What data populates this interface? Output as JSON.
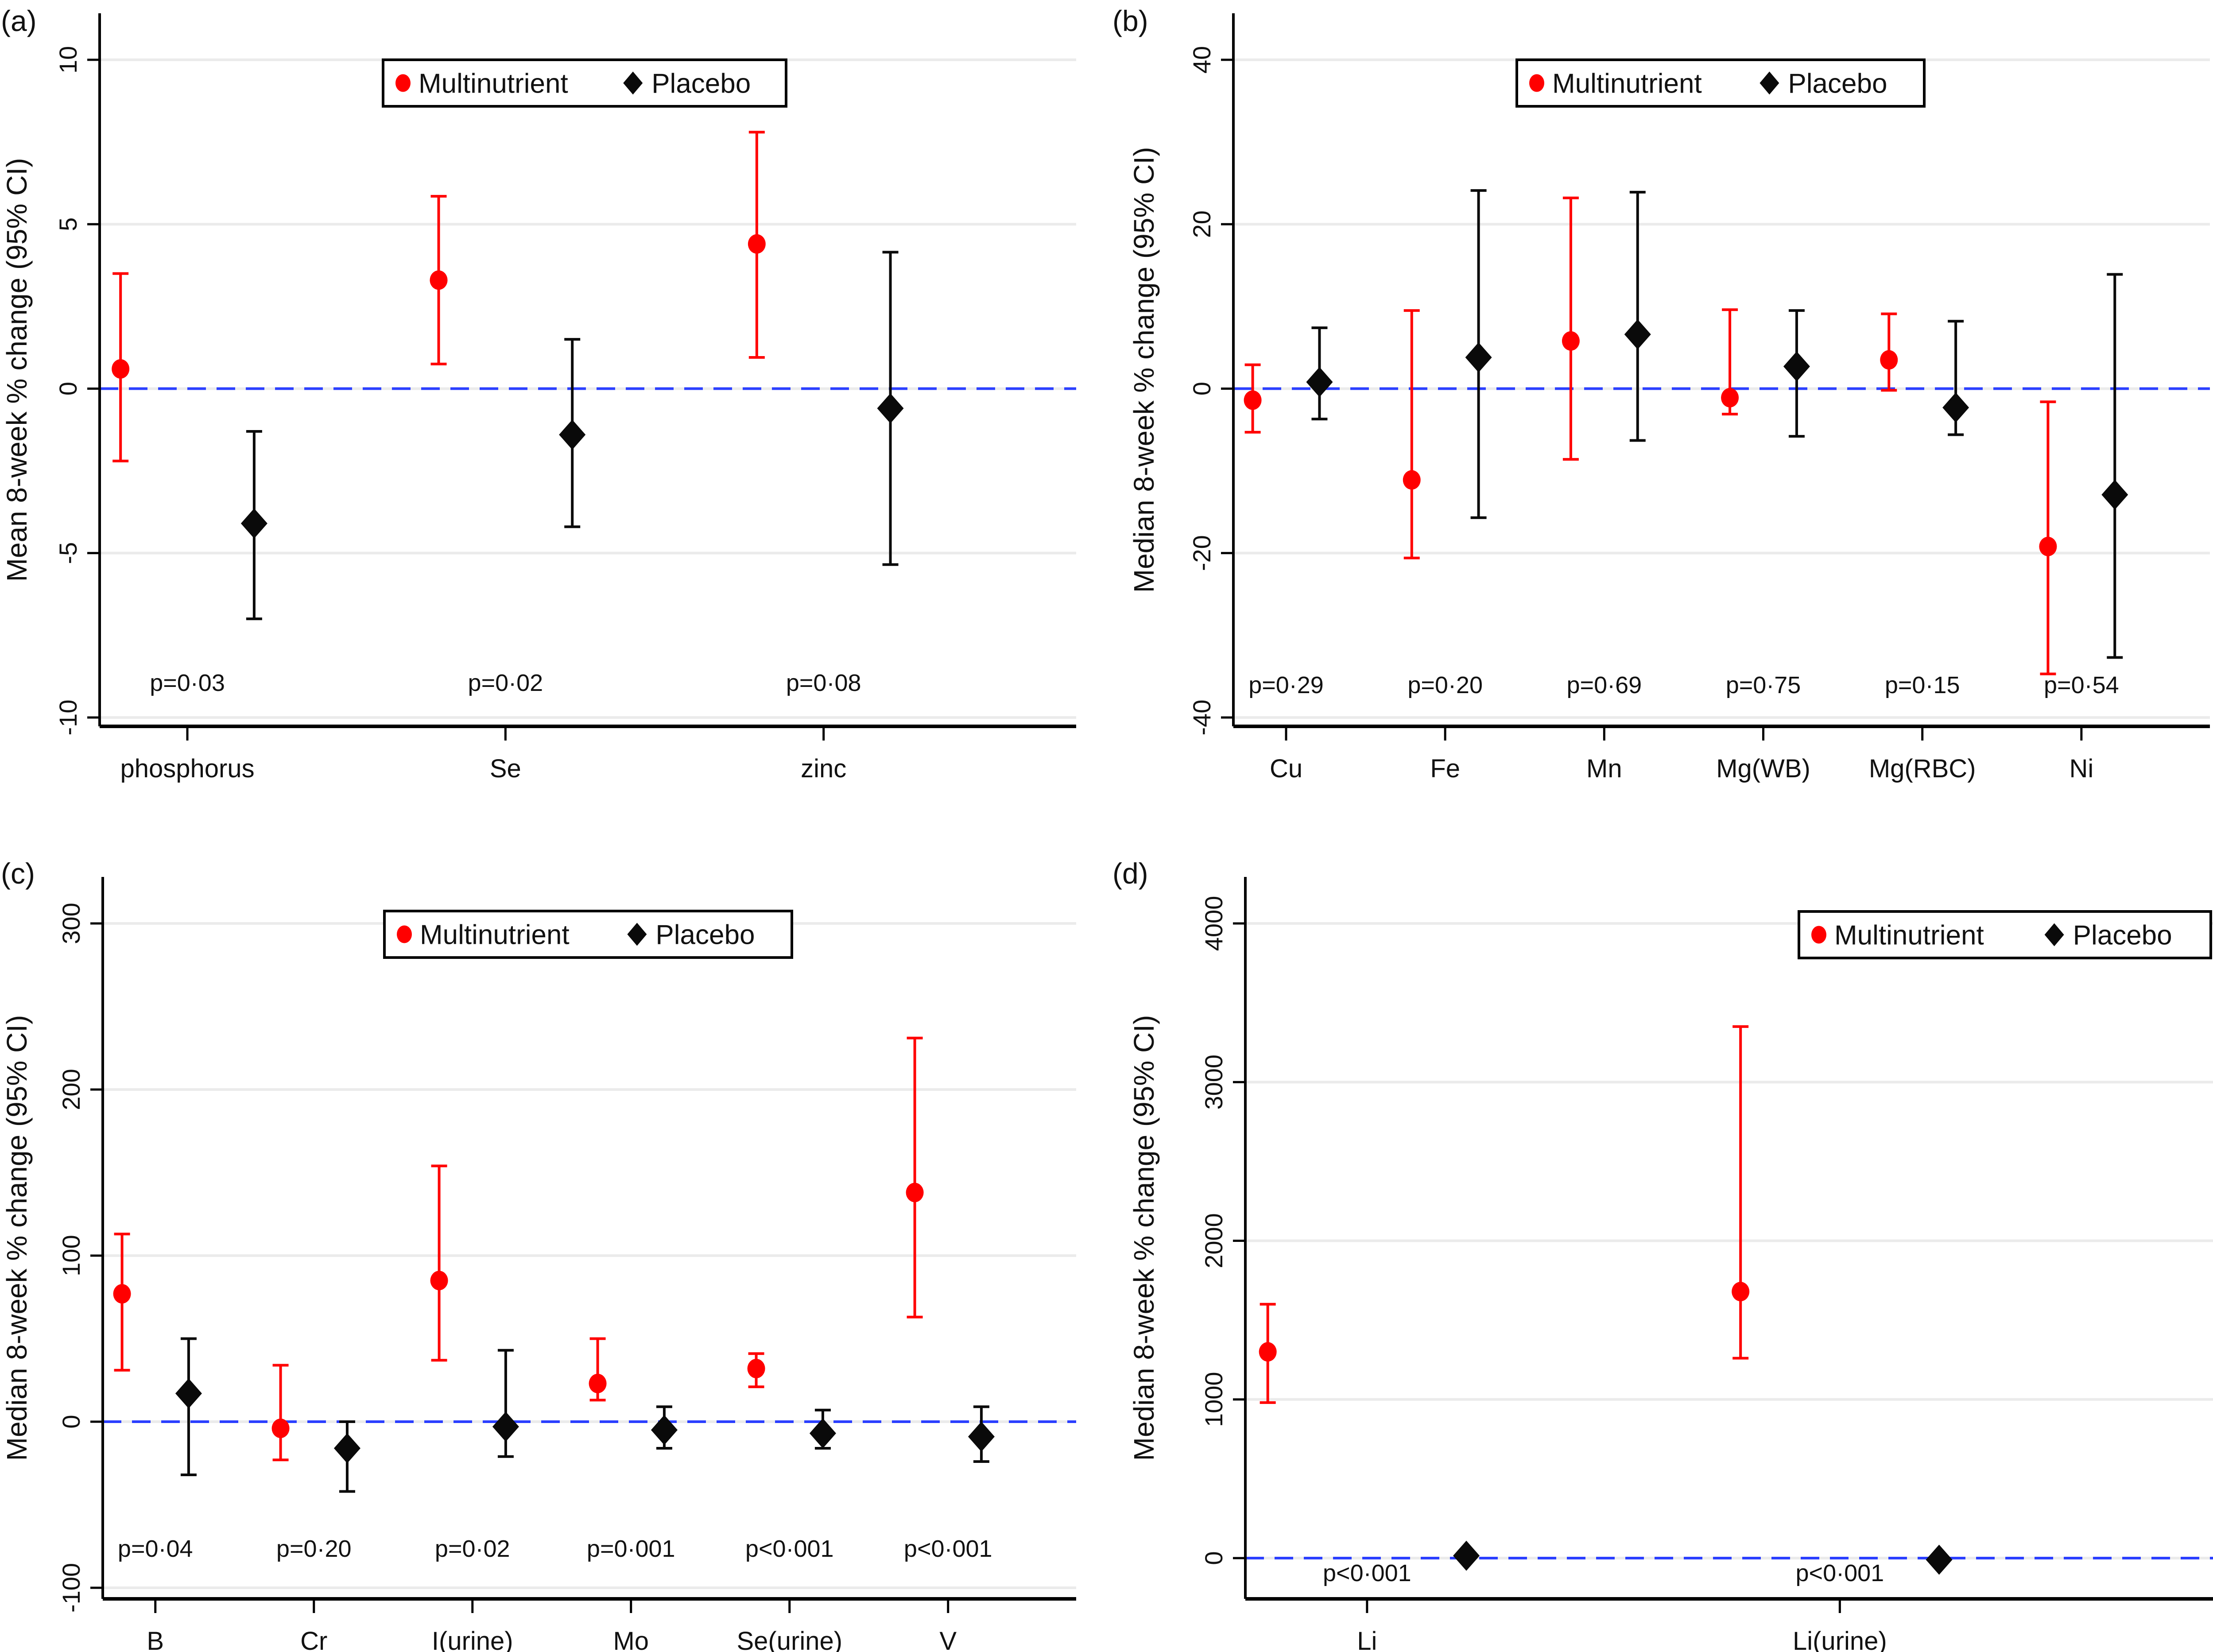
{
  "colors": {
    "multinutrient": "#ff0000",
    "placebo": "#0a0a0a",
    "reference_line": "#2b3fff",
    "grid": "#ebebeb"
  },
  "legend": {
    "multinutrient": "Multinutrient",
    "placebo": "Placebo"
  },
  "chart_data": [
    {
      "type": "scatter",
      "panel": "(a)",
      "ylabel": "Mean 8-week % change (95% CI)",
      "ylim": [
        -10,
        10
      ],
      "yticks": [
        -10,
        -5,
        0,
        5,
        10
      ],
      "yticklabels": [
        "-10",
        "-5",
        "0",
        "5",
        "10"
      ],
      "categories": [
        "phosphorus",
        "Se",
        "zinc"
      ],
      "p_values": [
        "p=0·03",
        "p=0·02",
        "p=0·08"
      ],
      "legend_position": "top-center",
      "reference_line": 0,
      "grid": true,
      "series": [
        {
          "name": "Multinutrient",
          "marker": "circle",
          "values": [
            0.6,
            3.3,
            4.4
          ],
          "ci_low": [
            -2.2,
            0.75,
            0.95
          ],
          "ci_high": [
            3.5,
            5.85,
            7.8
          ]
        },
        {
          "name": "Placebo",
          "marker": "diamond",
          "values": [
            -4.1,
            -1.4,
            -0.6
          ],
          "ci_low": [
            -7.0,
            -4.2,
            -5.35
          ],
          "ci_high": [
            -1.3,
            1.5,
            4.15
          ]
        }
      ]
    },
    {
      "type": "scatter",
      "panel": "(b)",
      "ylabel": "Median 8-week % change (95% CI)",
      "ylim": [
        -40,
        40
      ],
      "yticks": [
        -40,
        -20,
        0,
        20,
        40
      ],
      "yticklabels": [
        "-40",
        "-20",
        "0",
        "20",
        "40"
      ],
      "categories": [
        "Cu",
        "Fe",
        "Mn",
        "Mg(WB)",
        "Mg(RBC)",
        "Ni"
      ],
      "p_values": [
        "p=0·29",
        "p=0·20",
        "p=0·69",
        "p=0·75",
        "p=0·15",
        "p=0·54"
      ],
      "legend_position": "top-center",
      "reference_line": 0,
      "grid": true,
      "series": [
        {
          "name": "Multinutrient",
          "marker": "circle",
          "values": [
            -1.4,
            -11.1,
            5.8,
            -1.1,
            3.5,
            -19.2
          ],
          "ci_low": [
            -5.3,
            -20.6,
            -8.6,
            -3.1,
            -0.2,
            -34.7
          ],
          "ci_high": [
            2.9,
            9.5,
            23.2,
            9.6,
            9.1,
            -1.6
          ]
        },
        {
          "name": "Placebo",
          "marker": "diamond",
          "values": [
            0.8,
            3.8,
            6.6,
            2.7,
            -2.3,
            -12.9
          ],
          "ci_low": [
            -3.7,
            -15.7,
            -6.3,
            -5.8,
            -5.6,
            -32.7
          ],
          "ci_high": [
            7.4,
            24.1,
            23.9,
            9.5,
            8.2,
            13.9
          ]
        }
      ]
    },
    {
      "type": "scatter",
      "panel": "(c)",
      "ylabel": "Median 8-week % change (95% CI)",
      "ylim": [
        -100,
        300
      ],
      "yticks": [
        -100,
        0,
        100,
        200,
        300
      ],
      "yticklabels": [
        "-100",
        "0",
        "100",
        "200",
        "300"
      ],
      "categories": [
        "B",
        "Cr",
        "I(urine)",
        "Mo",
        "Se(urine)",
        "V"
      ],
      "p_values": [
        "p=0·04",
        "p=0·20",
        "p=0·02",
        "p=0·001",
        "p<0·001",
        "p<0·001"
      ],
      "legend_position": "top-center",
      "reference_line": 0,
      "grid": true,
      "series": [
        {
          "name": "Multinutrient",
          "marker": "circle",
          "values": [
            77,
            -4,
            85,
            23,
            32,
            138
          ],
          "ci_low": [
            31,
            -23,
            37,
            13,
            21,
            63
          ],
          "ci_high": [
            113,
            34,
            154,
            50,
            41,
            231
          ]
        },
        {
          "name": "Placebo",
          "marker": "diamond",
          "values": [
            17,
            -16,
            -3,
            -5,
            -7,
            -9
          ],
          "ci_low": [
            -32,
            -42,
            -21,
            -16,
            -16,
            -24
          ],
          "ci_high": [
            50,
            0,
            43,
            9,
            7,
            9
          ]
        }
      ]
    },
    {
      "type": "scatter",
      "panel": "(d)",
      "ylabel": "Median 8-week % change (95% CI)",
      "ylim": [
        -250,
        4000
      ],
      "yticks": [
        0,
        1000,
        2000,
        3000,
        4000
      ],
      "yticklabels": [
        "0",
        "1000",
        "2000",
        "3000",
        "4000"
      ],
      "categories": [
        "Li",
        "Li(urine)"
      ],
      "p_values": [
        "p<0·001",
        "p<0·001"
      ],
      "legend_position": "top-right",
      "reference_line": 0,
      "grid": true,
      "series": [
        {
          "name": "Multinutrient",
          "marker": "circle",
          "values": [
            1300,
            1680
          ],
          "ci_low": [
            980,
            1260
          ],
          "ci_high": [
            1600,
            3350
          ]
        },
        {
          "name": "Placebo",
          "marker": "diamond",
          "values": [
            15,
            -10
          ],
          "ci_low": [
            15,
            -10
          ],
          "ci_high": [
            15,
            -10
          ]
        }
      ]
    }
  ]
}
